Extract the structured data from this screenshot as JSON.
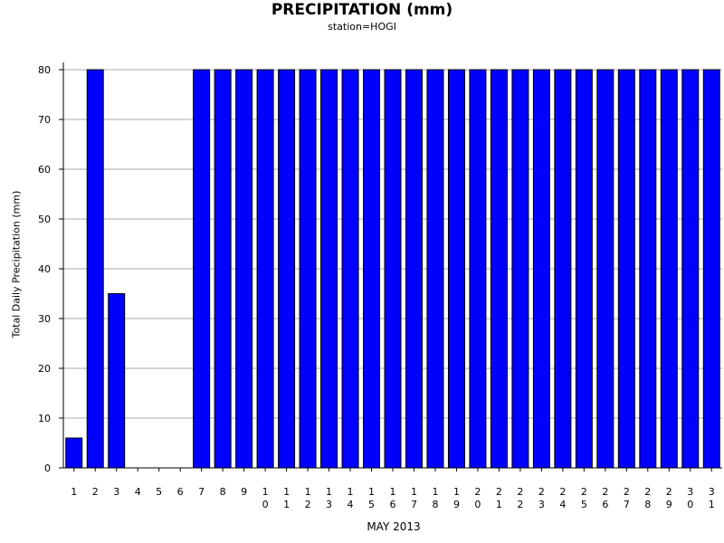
{
  "chart_data": {
    "type": "bar",
    "title": "PRECIPITATION (mm)",
    "subtitle": "station=HOGI",
    "xlabel": "MAY 2013",
    "ylabel": "Total Daily Precipitation (mm)",
    "ylim": [
      0,
      80
    ],
    "yticks": [
      0,
      10,
      20,
      30,
      40,
      50,
      60,
      70,
      80
    ],
    "grid": "horizontal",
    "bar_color": "#0000ff",
    "categories": [
      "1",
      "2",
      "3",
      "4",
      "5",
      "6",
      "7",
      "8",
      "9",
      "10",
      "11",
      "12",
      "13",
      "14",
      "15",
      "16",
      "17",
      "18",
      "19",
      "20",
      "21",
      "22",
      "23",
      "24",
      "25",
      "26",
      "27",
      "28",
      "29",
      "30",
      "31"
    ],
    "values": [
      6,
      80,
      35,
      0,
      0,
      0,
      80,
      80,
      80,
      80,
      80,
      80,
      80,
      80,
      80,
      80,
      80,
      80,
      80,
      80,
      80,
      80,
      80,
      80,
      80,
      80,
      80,
      80,
      80,
      80,
      80
    ]
  }
}
